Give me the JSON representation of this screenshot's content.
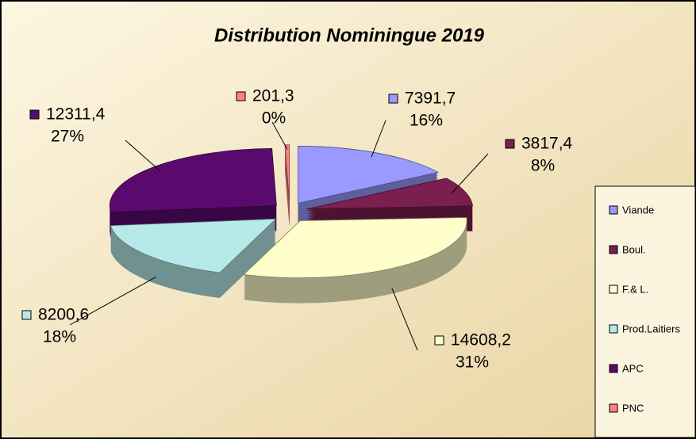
{
  "chart_data": {
    "type": "pie",
    "title": "Distribution Nominingue 2019",
    "categories": [
      "Viande",
      "Boul.",
      "F.& L.",
      "Prod.Laitiers",
      "APC",
      "PNC"
    ],
    "values": [
      7391.7,
      3817.4,
      14608.2,
      8200.6,
      12311.4,
      201.3
    ],
    "value_labels": [
      "7391,7",
      "3817,4",
      "14608,2",
      "8200,6",
      "12311,4",
      "201,3"
    ],
    "percents": [
      16,
      8,
      31,
      18,
      27,
      0
    ],
    "percent_labels": [
      "16%",
      "8%",
      "31%",
      "18%",
      "27%",
      "0%"
    ],
    "colors": [
      "#9999ff",
      "#7a1f4f",
      "#ffffcc",
      "#b6eaea",
      "#5a0a6e",
      "#ff8080"
    ],
    "legend": "right"
  }
}
